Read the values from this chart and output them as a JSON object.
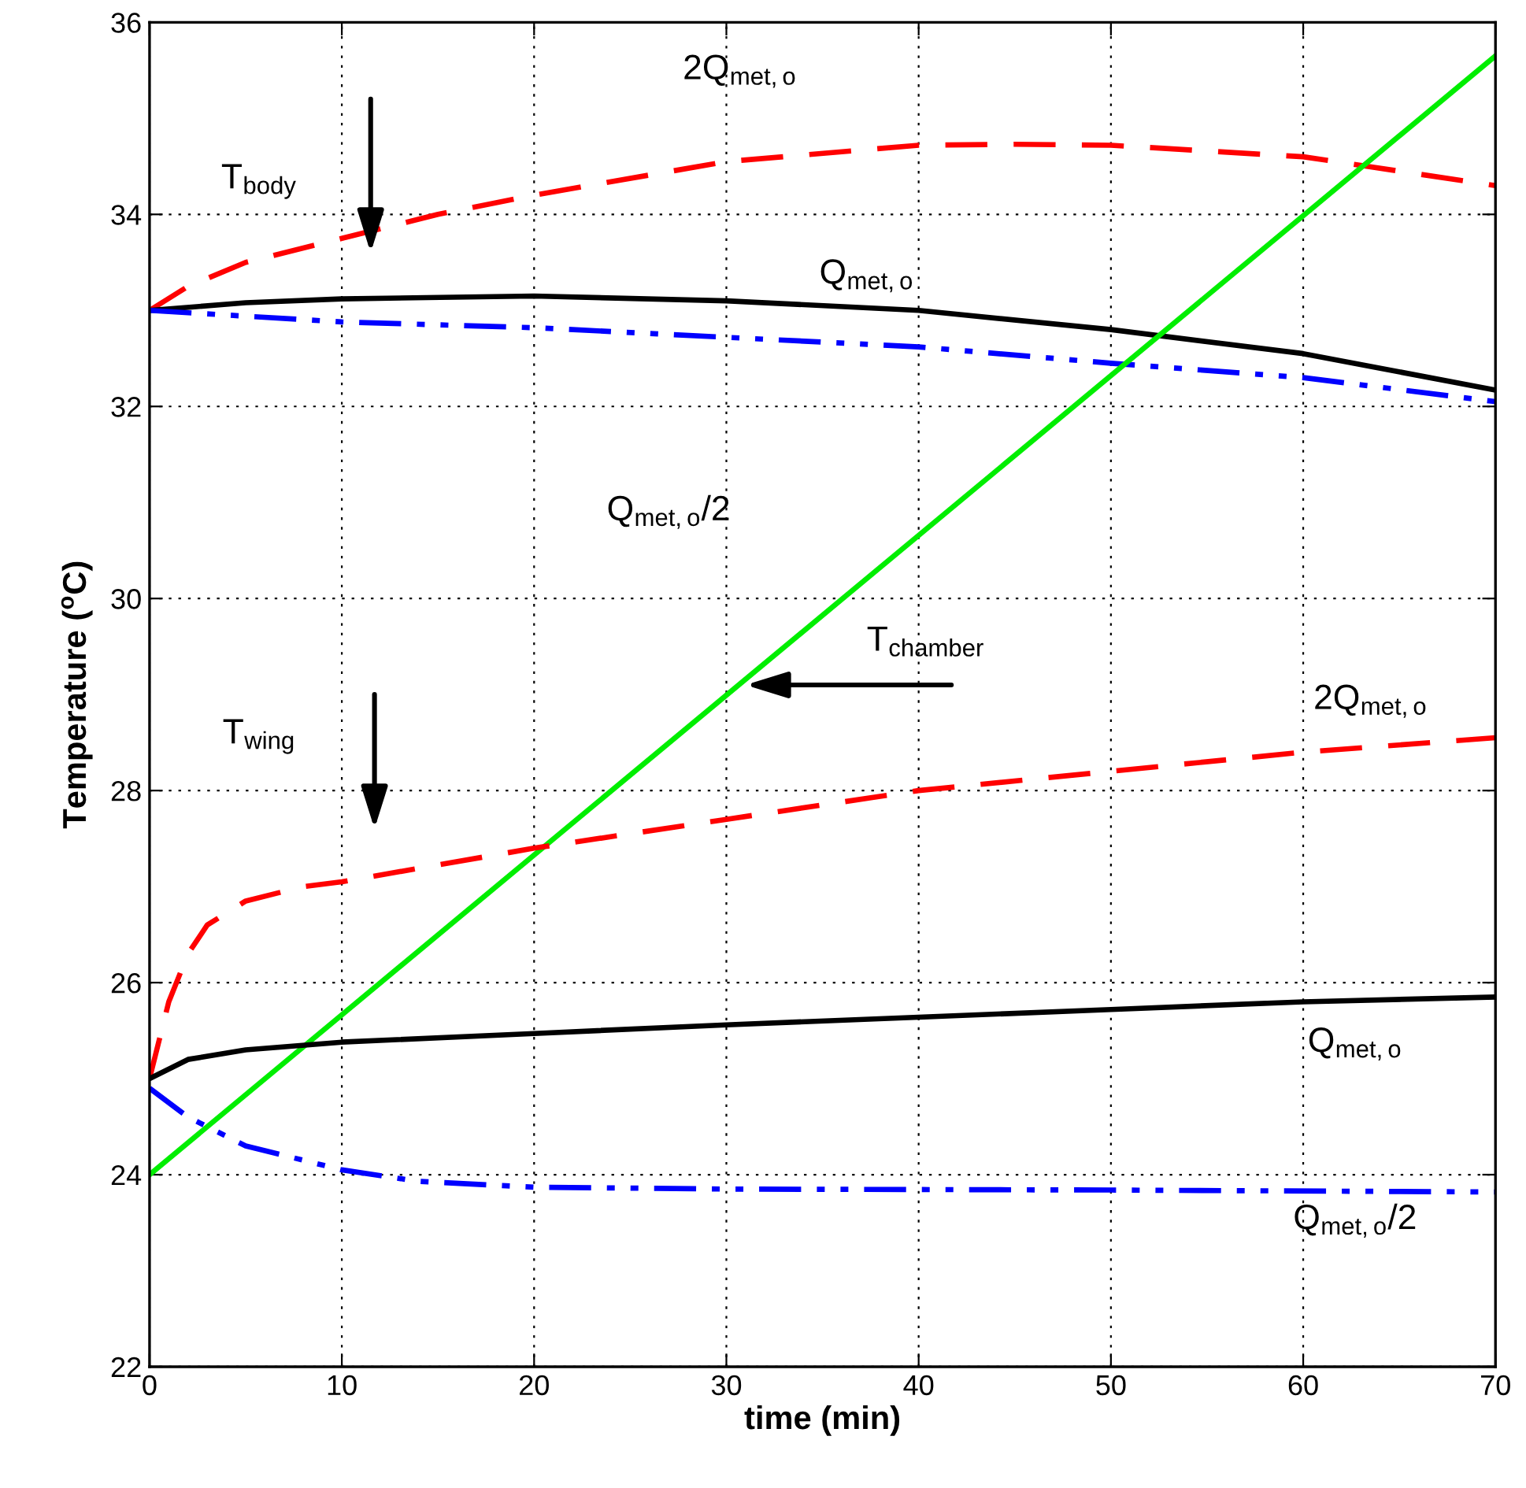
{
  "chart_data": {
    "type": "line",
    "xlabel": "time (min)",
    "ylabel": "Temperature ($^{o}$C)",
    "xlim": [
      0,
      70
    ],
    "ylim": [
      22,
      36
    ],
    "xticks": [
      0,
      10,
      20,
      30,
      40,
      50,
      60,
      70
    ],
    "yticks": [
      22,
      24,
      26,
      28,
      30,
      32,
      34,
      36
    ],
    "grid": true,
    "marker": "none",
    "series": [
      {
        "color": "#ff0000",
        "line_style": "dashed",
        "x": [
          0,
          2,
          5,
          10,
          15,
          20,
          30,
          40,
          45,
          50,
          60,
          70
        ],
        "values": [
          33.0,
          33.25,
          33.5,
          33.75,
          34.0,
          34.2,
          34.55,
          34.72,
          34.73,
          34.72,
          34.6,
          34.3
        ]
      },
      {
        "color": "#000000",
        "line_style": "solid",
        "x": [
          0,
          5,
          10,
          20,
          30,
          40,
          50,
          60,
          70
        ],
        "values": [
          33.0,
          33.08,
          33.12,
          33.15,
          33.1,
          33.0,
          32.8,
          32.55,
          32.17
        ]
      },
      {
        "color": "#0000ff",
        "line_style": "dashdot",
        "x": [
          0,
          10,
          20,
          30,
          40,
          50,
          60,
          70
        ],
        "values": [
          33.0,
          32.88,
          32.82,
          32.72,
          32.62,
          32.45,
          32.3,
          32.05
        ]
      },
      {
        "color": "#00ee00",
        "line_style": "solid",
        "x": [
          0,
          70
        ],
        "values": [
          24.0,
          35.65
        ]
      },
      {
        "color": "#ff0000",
        "line_style": "dashed",
        "x": [
          0,
          1,
          2,
          3,
          5,
          8,
          10,
          20,
          30,
          40,
          50,
          60,
          70
        ],
        "values": [
          25.0,
          25.8,
          26.3,
          26.6,
          26.85,
          27.0,
          27.05,
          27.4,
          27.7,
          28.0,
          28.2,
          28.4,
          28.55
        ]
      },
      {
        "color": "#000000",
        "line_style": "solid",
        "x": [
          0,
          2,
          5,
          10,
          20,
          30,
          40,
          50,
          60,
          70
        ],
        "values": [
          25.0,
          25.2,
          25.3,
          25.38,
          25.47,
          25.56,
          25.64,
          25.72,
          25.8,
          25.85
        ]
      },
      {
        "color": "#0000ff",
        "line_style": "dashdot",
        "x": [
          0,
          2,
          5,
          10,
          14,
          20,
          30,
          50,
          70
        ],
        "values": [
          24.9,
          24.6,
          24.3,
          24.05,
          23.93,
          23.87,
          23.85,
          23.84,
          23.82
        ]
      }
    ],
    "annotations": [
      "T$_{body}$",
      "T$_{wing}$",
      "T$_{chamber}$",
      "2Q$_{met,o}$",
      "Q$_{met,o}$",
      "Q$_{met,o}$/2",
      "2Q$_{met,o}$",
      "Q$_{met,o}$",
      "Q$_{met,o}$/2"
    ]
  }
}
